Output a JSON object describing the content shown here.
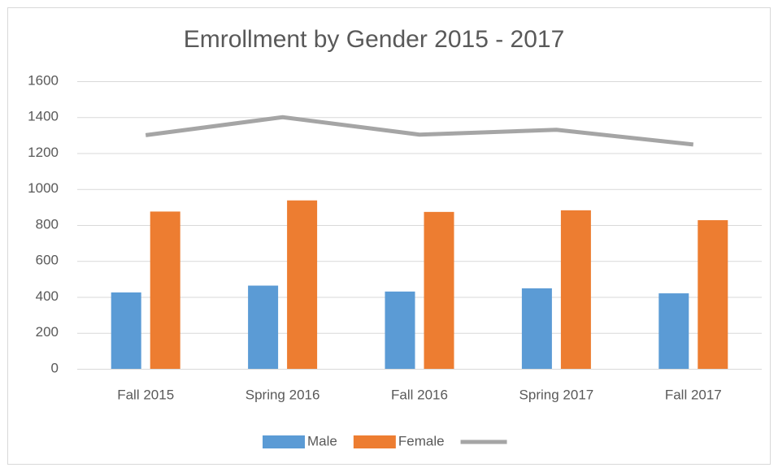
{
  "chart_data": {
    "type": "bar",
    "title": "Emrollment by Gender 2015 - 2017",
    "categories": [
      "Fall 2015",
      "Spring 2016",
      "Fall 2016",
      "Spring 2017",
      "Fall 2017"
    ],
    "series": [
      {
        "name": "Male",
        "color": "#5b9bd5",
        "values": [
          425,
          463,
          430,
          448,
          420
        ]
      },
      {
        "name": "Female",
        "color": "#ed7d31",
        "values": [
          875,
          937,
          873,
          882,
          827
        ]
      },
      {
        "type": "line",
        "color": "#a5a5a5",
        "values": [
          1300,
          1400,
          1303,
          1330,
          1248
        ]
      }
    ],
    "ylim": [
      0,
      1600
    ],
    "yticks": [
      0,
      200,
      400,
      600,
      800,
      1000,
      1200,
      1400,
      1600
    ],
    "grid": true,
    "legend": "bottom"
  }
}
